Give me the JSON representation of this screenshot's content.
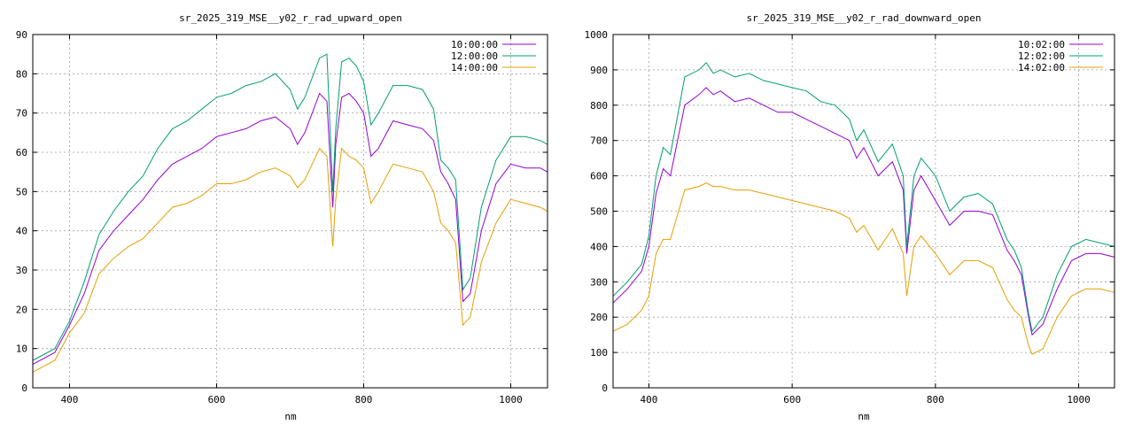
{
  "chart_data": [
    {
      "type": "line",
      "title": "sr_2025_319_MSE__y02_r_rad_upward_open",
      "xlabel": "nm",
      "ylabel": "",
      "xlim": [
        350,
        1050
      ],
      "ylim": [
        0,
        90
      ],
      "x_ticks": [
        400,
        600,
        800,
        1000
      ],
      "y_ticks": [
        0,
        10,
        20,
        30,
        40,
        50,
        60,
        70,
        80,
        90
      ],
      "grid": true,
      "legend_position": "top-right",
      "x": [
        350,
        380,
        400,
        420,
        440,
        460,
        480,
        500,
        520,
        540,
        560,
        580,
        600,
        620,
        640,
        660,
        680,
        700,
        710,
        720,
        740,
        750,
        758,
        762,
        770,
        780,
        790,
        800,
        810,
        820,
        840,
        860,
        880,
        895,
        905,
        915,
        925,
        935,
        945,
        960,
        980,
        1000,
        1020,
        1040,
        1050
      ],
      "series": [
        {
          "name": "10:00:00",
          "color": "#9400d3",
          "values": [
            6,
            9,
            16,
            24,
            35,
            40,
            44,
            48,
            53,
            57,
            59,
            61,
            64,
            65,
            66,
            68,
            69,
            66,
            62,
            65,
            75,
            73,
            46,
            62,
            74,
            75,
            73,
            70,
            59,
            61,
            68,
            67,
            66,
            63,
            55,
            52,
            48,
            22,
            24,
            40,
            52,
            57,
            56,
            56,
            55
          ]
        },
        {
          "name": "12:00:00",
          "color": "#009e73",
          "values": [
            7,
            10,
            17,
            27,
            39,
            45,
            50,
            54,
            61,
            66,
            68,
            71,
            74,
            75,
            77,
            78,
            80,
            76,
            71,
            74,
            84,
            85,
            50,
            66,
            83,
            84,
            82,
            78,
            67,
            70,
            77,
            77,
            76,
            71,
            58,
            56,
            53,
            25,
            28,
            46,
            58,
            64,
            64,
            63,
            62
          ]
        },
        {
          "name": "14:00:00",
          "color": "#e69f00",
          "values": [
            4,
            7,
            14,
            19,
            29,
            33,
            36,
            38,
            42,
            46,
            47,
            49,
            52,
            52,
            53,
            55,
            56,
            54,
            51,
            53,
            61,
            59,
            36,
            48,
            61,
            59,
            58,
            56,
            47,
            50,
            57,
            56,
            55,
            50,
            42,
            40,
            37,
            16,
            18,
            32,
            42,
            48,
            47,
            46,
            45
          ]
        }
      ]
    },
    {
      "type": "line",
      "title": "sr_2025_319_MSE__y02_r_rad_downward_open",
      "xlabel": "nm",
      "ylabel": "",
      "xlim": [
        350,
        1050
      ],
      "ylim": [
        0,
        1000
      ],
      "x_ticks": [
        400,
        600,
        800,
        1000
      ],
      "y_ticks": [
        0,
        100,
        200,
        300,
        400,
        500,
        600,
        700,
        800,
        900,
        1000
      ],
      "grid": true,
      "legend_position": "top-right",
      "x": [
        350,
        370,
        390,
        400,
        410,
        420,
        430,
        450,
        470,
        480,
        490,
        500,
        520,
        540,
        560,
        580,
        600,
        620,
        640,
        660,
        680,
        690,
        700,
        720,
        740,
        755,
        760,
        770,
        780,
        800,
        820,
        840,
        860,
        880,
        900,
        910,
        920,
        930,
        935,
        950,
        970,
        990,
        1010,
        1030,
        1050
      ],
      "series": [
        {
          "name": "10:02:00",
          "color": "#9400d3",
          "values": [
            240,
            280,
            330,
            400,
            550,
            620,
            600,
            800,
            830,
            850,
            830,
            840,
            810,
            820,
            800,
            780,
            780,
            760,
            740,
            720,
            700,
            650,
            680,
            600,
            640,
            560,
            380,
            560,
            600,
            530,
            460,
            500,
            500,
            490,
            390,
            360,
            320,
            200,
            150,
            180,
            280,
            360,
            380,
            380,
            370
          ]
        },
        {
          "name": "12:02:00",
          "color": "#009e73",
          "values": [
            260,
            300,
            350,
            430,
            600,
            680,
            660,
            880,
            900,
            920,
            890,
            900,
            880,
            890,
            870,
            860,
            850,
            840,
            810,
            800,
            760,
            700,
            730,
            640,
            690,
            600,
            400,
            600,
            650,
            600,
            500,
            540,
            550,
            520,
            420,
            390,
            340,
            210,
            160,
            200,
            320,
            400,
            420,
            410,
            400
          ]
        },
        {
          "name": "14:02:00",
          "color": "#e69f00",
          "values": [
            160,
            180,
            220,
            260,
            380,
            420,
            420,
            560,
            570,
            580,
            570,
            570,
            560,
            560,
            550,
            540,
            530,
            520,
            510,
            500,
            480,
            440,
            460,
            390,
            450,
            380,
            260,
            400,
            430,
            380,
            320,
            360,
            360,
            340,
            250,
            220,
            200,
            120,
            95,
            110,
            200,
            260,
            280,
            280,
            270
          ]
        }
      ]
    }
  ]
}
